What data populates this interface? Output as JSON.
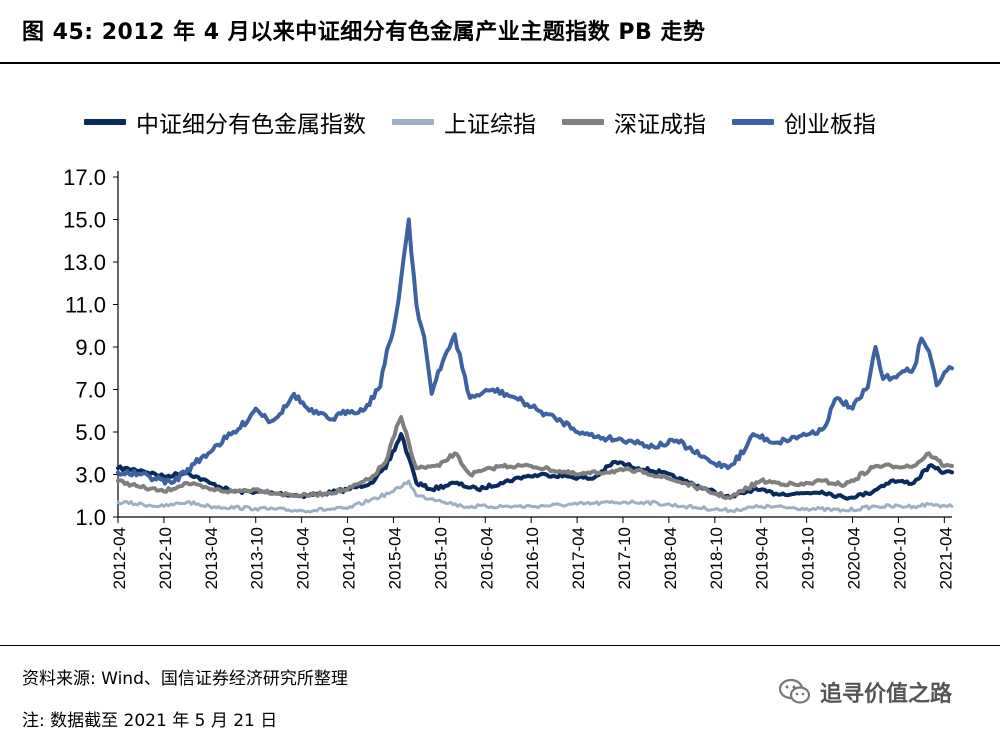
{
  "title": "图 45:  2012 年 4 月以来中证细分有色金属产业主题指数 PB 走势",
  "source": "资料来源: Wind、国信证券经济研究所整理",
  "note": "注:  数据截至 2021 年 5 月 21 日",
  "watermark": {
    "text": "追寻价值之路",
    "icon": "wechat-icon"
  },
  "chart_data": {
    "type": "line",
    "ylim": [
      1.0,
      17.0
    ],
    "y_ticks": [
      "17.0",
      "15.0",
      "13.0",
      "11.0",
      "9.0",
      "7.0",
      "5.0",
      "3.0",
      "1.0"
    ],
    "x_ticks": [
      "2012-04",
      "2012-10",
      "2013-04",
      "2013-10",
      "2014-04",
      "2014-10",
      "2015-04",
      "2015-10",
      "2016-04",
      "2016-10",
      "2017-04",
      "2017-10",
      "2018-04",
      "2018-10",
      "2019-04",
      "2019-10",
      "2020-04",
      "2020-10",
      "2021-04"
    ],
    "x_range": [
      "2012-04",
      "2021-05"
    ],
    "grid": false,
    "legend_position": "top",
    "series": [
      {
        "name": "中证细分有色金属指数",
        "color": "#0b2a5c",
        "values": [
          [
            "2012-04",
            3.3
          ],
          [
            "2012-07",
            3.2
          ],
          [
            "2012-10",
            2.9
          ],
          [
            "2013-01",
            3.1
          ],
          [
            "2013-04",
            2.6
          ],
          [
            "2013-07",
            2.2
          ],
          [
            "2013-10",
            2.2
          ],
          [
            "2014-01",
            2.1
          ],
          [
            "2014-04",
            2.0
          ],
          [
            "2014-07",
            2.1
          ],
          [
            "2014-10",
            2.3
          ],
          [
            "2015-01",
            2.6
          ],
          [
            "2015-03",
            3.3
          ],
          [
            "2015-05",
            4.9
          ],
          [
            "2015-06",
            3.8
          ],
          [
            "2015-07",
            2.6
          ],
          [
            "2015-09",
            2.3
          ],
          [
            "2015-12",
            2.6
          ],
          [
            "2016-03",
            2.3
          ],
          [
            "2016-06",
            2.6
          ],
          [
            "2016-09",
            2.9
          ],
          [
            "2016-12",
            3.0
          ],
          [
            "2017-03",
            2.9
          ],
          [
            "2017-06",
            2.8
          ],
          [
            "2017-09",
            3.6
          ],
          [
            "2017-12",
            3.3
          ],
          [
            "2018-03",
            3.1
          ],
          [
            "2018-06",
            2.7
          ],
          [
            "2018-09",
            2.3
          ],
          [
            "2018-12",
            1.9
          ],
          [
            "2019-03",
            2.3
          ],
          [
            "2019-06",
            2.1
          ],
          [
            "2019-09",
            2.1
          ],
          [
            "2019-12",
            2.2
          ],
          [
            "2020-03",
            1.9
          ],
          [
            "2020-06",
            2.1
          ],
          [
            "2020-09",
            2.7
          ],
          [
            "2020-12",
            2.6
          ],
          [
            "2021-02",
            3.4
          ],
          [
            "2021-04",
            3.1
          ],
          [
            "2021-05",
            3.1
          ]
        ]
      },
      {
        "name": "上证综指",
        "color": "#9db0c3",
        "values": [
          [
            "2012-04",
            1.7
          ],
          [
            "2012-10",
            1.5
          ],
          [
            "2013-01",
            1.7
          ],
          [
            "2013-04",
            1.5
          ],
          [
            "2013-10",
            1.4
          ],
          [
            "2014-04",
            1.3
          ],
          [
            "2014-10",
            1.4
          ],
          [
            "2015-01",
            1.8
          ],
          [
            "2015-04",
            2.2
          ],
          [
            "2015-06",
            2.7
          ],
          [
            "2015-07",
            2.0
          ],
          [
            "2015-10",
            1.8
          ],
          [
            "2016-01",
            1.5
          ],
          [
            "2016-10",
            1.5
          ],
          [
            "2017-04",
            1.6
          ],
          [
            "2017-10",
            1.7
          ],
          [
            "2018-01",
            1.7
          ],
          [
            "2018-06",
            1.5
          ],
          [
            "2018-12",
            1.3
          ],
          [
            "2019-04",
            1.5
          ],
          [
            "2019-10",
            1.4
          ],
          [
            "2020-03",
            1.3
          ],
          [
            "2020-07",
            1.5
          ],
          [
            "2020-12",
            1.5
          ],
          [
            "2021-02",
            1.6
          ],
          [
            "2021-05",
            1.5
          ]
        ]
      },
      {
        "name": "深证成指",
        "color": "#7f7f7f",
        "values": [
          [
            "2012-04",
            2.7
          ],
          [
            "2012-07",
            2.4
          ],
          [
            "2012-10",
            2.2
          ],
          [
            "2013-01",
            2.6
          ],
          [
            "2013-04",
            2.3
          ],
          [
            "2013-07",
            2.2
          ],
          [
            "2013-10",
            2.3
          ],
          [
            "2014-01",
            2.1
          ],
          [
            "2014-04",
            2.0
          ],
          [
            "2014-07",
            2.1
          ],
          [
            "2014-10",
            2.3
          ],
          [
            "2015-01",
            2.8
          ],
          [
            "2015-03",
            3.6
          ],
          [
            "2015-05",
            5.7
          ],
          [
            "2015-06",
            4.5
          ],
          [
            "2015-07",
            3.3
          ],
          [
            "2015-10",
            3.4
          ],
          [
            "2015-12",
            4.0
          ],
          [
            "2016-02",
            3.0
          ],
          [
            "2016-06",
            3.4
          ],
          [
            "2016-10",
            3.4
          ],
          [
            "2017-04",
            3.0
          ],
          [
            "2017-10",
            3.2
          ],
          [
            "2018-01",
            3.1
          ],
          [
            "2018-06",
            2.6
          ],
          [
            "2018-10",
            2.1
          ],
          [
            "2018-12",
            1.9
          ],
          [
            "2019-04",
            2.7
          ],
          [
            "2019-09",
            2.5
          ],
          [
            "2019-12",
            2.7
          ],
          [
            "2020-03",
            2.5
          ],
          [
            "2020-07",
            3.4
          ],
          [
            "2020-12",
            3.4
          ],
          [
            "2021-02",
            4.0
          ],
          [
            "2021-04",
            3.4
          ],
          [
            "2021-05",
            3.4
          ]
        ]
      },
      {
        "name": "创业板指",
        "color": "#3e62a1",
        "values": [
          [
            "2012-04",
            3.1
          ],
          [
            "2012-07",
            3.0
          ],
          [
            "2012-11",
            2.6
          ],
          [
            "2013-02",
            3.5
          ],
          [
            "2013-05",
            4.4
          ],
          [
            "2013-08",
            5.2
          ],
          [
            "2013-10",
            6.1
          ],
          [
            "2013-12",
            5.5
          ],
          [
            "2014-02",
            6.2
          ],
          [
            "2014-03",
            6.8
          ],
          [
            "2014-05",
            6.0
          ],
          [
            "2014-08",
            5.6
          ],
          [
            "2014-10",
            6.0
          ],
          [
            "2014-12",
            6.0
          ],
          [
            "2015-02",
            7.0
          ],
          [
            "2015-04",
            9.8
          ],
          [
            "2015-05",
            12.2
          ],
          [
            "2015-06",
            15.0
          ],
          [
            "2015-07",
            11.0
          ],
          [
            "2015-08",
            9.5
          ],
          [
            "2015-09",
            6.8
          ],
          [
            "2015-11",
            8.8
          ],
          [
            "2015-12",
            9.6
          ],
          [
            "2016-01",
            8.0
          ],
          [
            "2016-02",
            6.6
          ],
          [
            "2016-05",
            7.0
          ],
          [
            "2016-08",
            6.6
          ],
          [
            "2016-11",
            6.0
          ],
          [
            "2017-02",
            5.5
          ],
          [
            "2017-05",
            4.9
          ],
          [
            "2017-08",
            4.7
          ],
          [
            "2017-11",
            4.6
          ],
          [
            "2018-02",
            4.3
          ],
          [
            "2018-05",
            4.6
          ],
          [
            "2018-08",
            3.9
          ],
          [
            "2018-10",
            3.5
          ],
          [
            "2018-12",
            3.4
          ],
          [
            "2019-02",
            4.2
          ],
          [
            "2019-03",
            4.9
          ],
          [
            "2019-06",
            4.5
          ],
          [
            "2019-09",
            4.8
          ],
          [
            "2019-12",
            5.1
          ],
          [
            "2020-02",
            6.6
          ],
          [
            "2020-04",
            6.1
          ],
          [
            "2020-06",
            7.1
          ],
          [
            "2020-07",
            9.0
          ],
          [
            "2020-08",
            7.5
          ],
          [
            "2020-10",
            7.7
          ],
          [
            "2020-12",
            8.0
          ],
          [
            "2021-01",
            9.4
          ],
          [
            "2021-02",
            8.8
          ],
          [
            "2021-03",
            7.2
          ],
          [
            "2021-04",
            7.8
          ],
          [
            "2021-05",
            8.0
          ]
        ]
      }
    ]
  }
}
